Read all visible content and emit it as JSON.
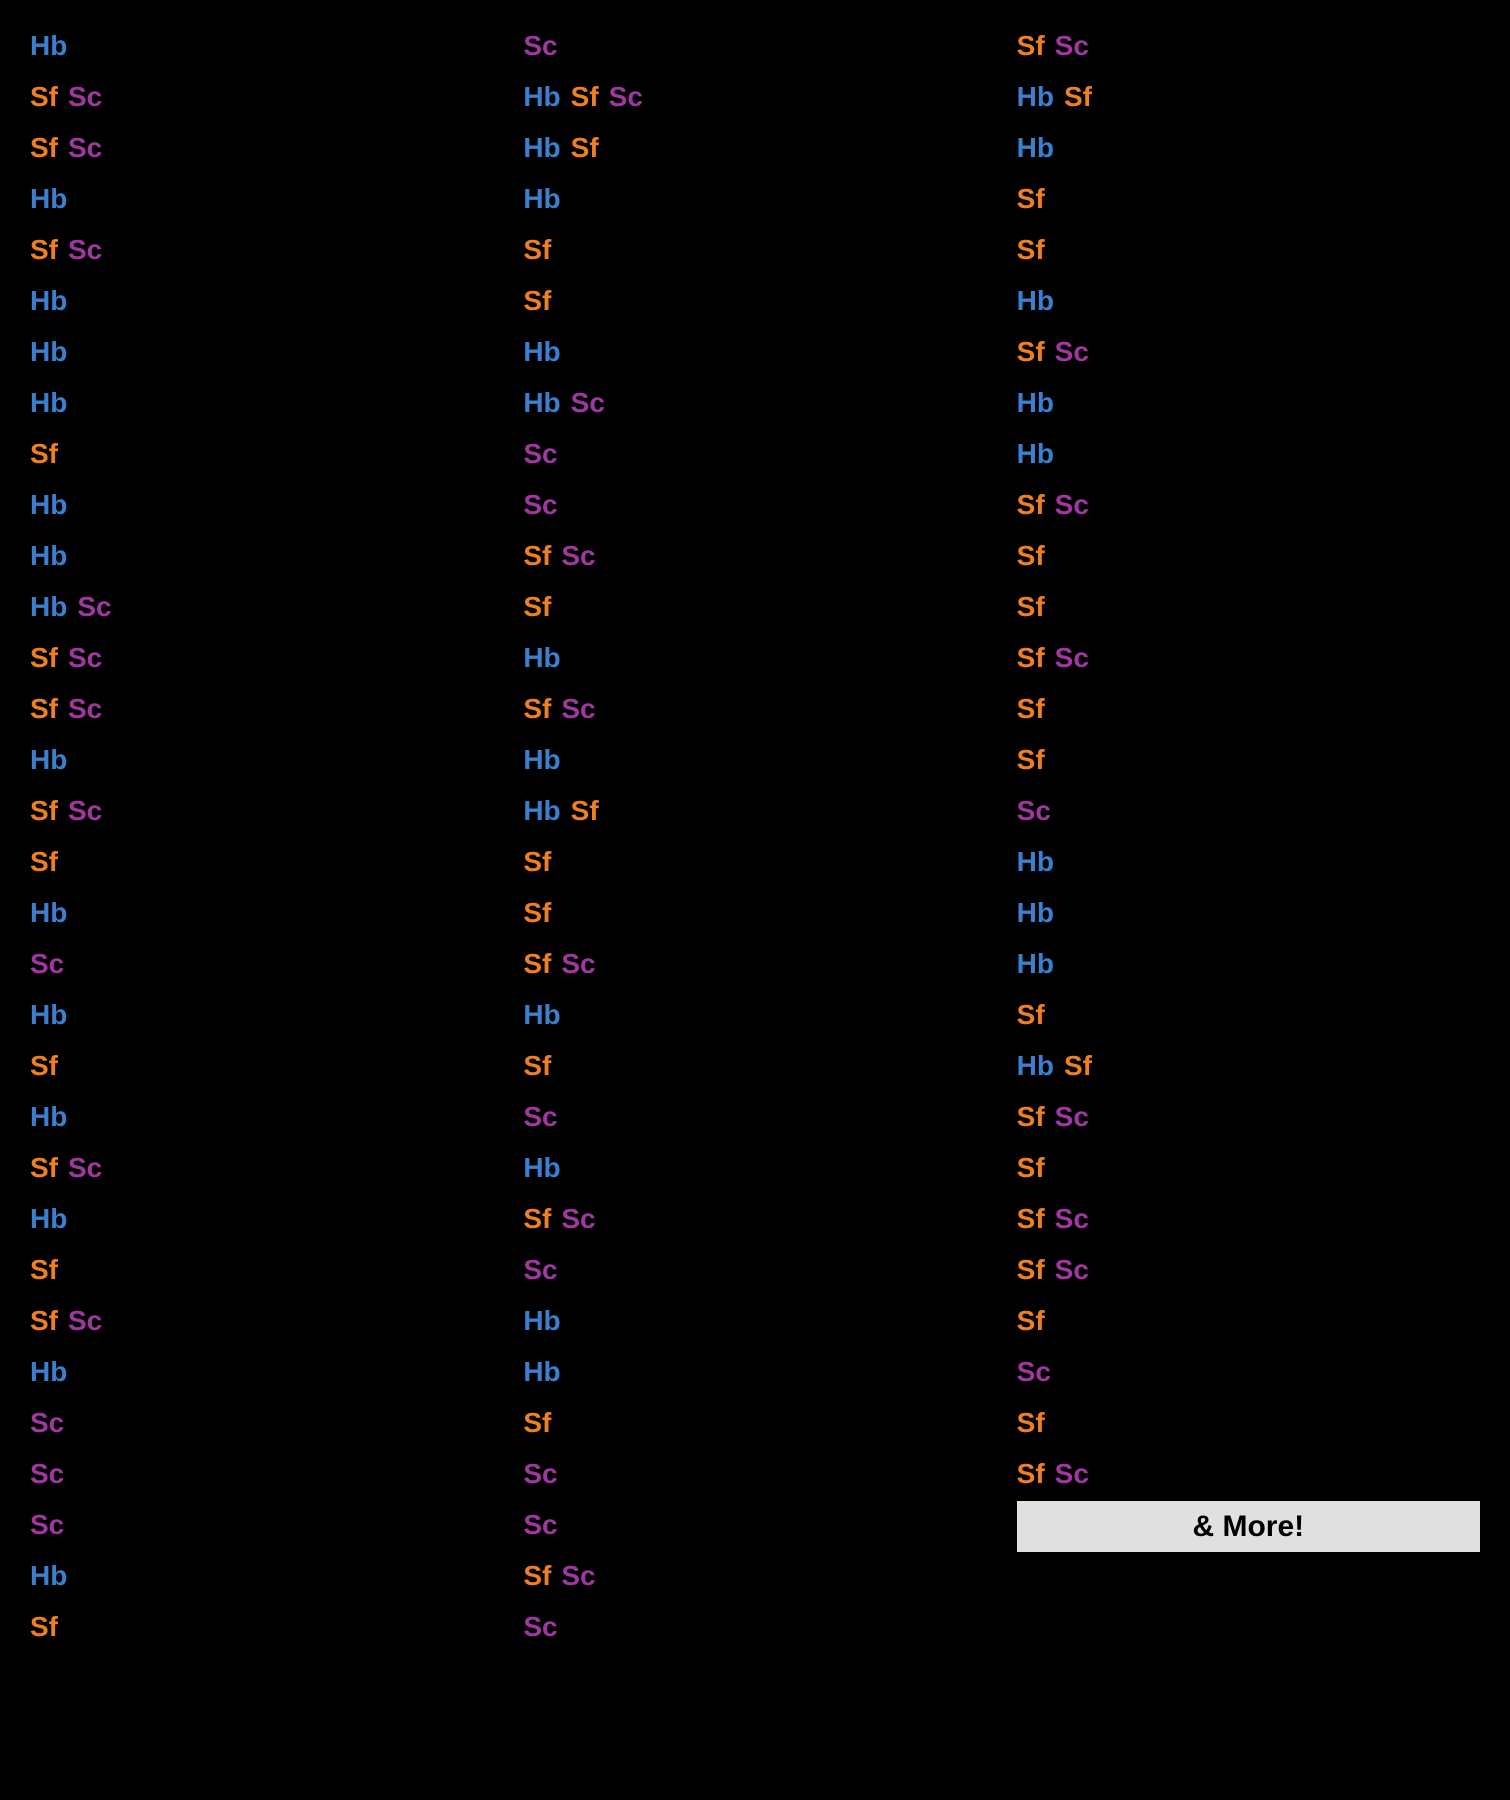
{
  "colors": {
    "Hb": "#3b7fd0",
    "Sf": "#f07f1f",
    "Sc": "#a0369f",
    "more_bg": "#e0e0e0",
    "more_text": "#000000"
  },
  "tag_labels": {
    "Hb": "Hb",
    "Sf": "Sf",
    "Sc": "Sc"
  },
  "more_label": "& More!",
  "columns": [
    [
      [
        "Hb"
      ],
      [
        "Sf",
        "Sc"
      ],
      [
        "Sf",
        "Sc"
      ],
      [
        "Hb"
      ],
      [
        "Sf",
        "Sc"
      ],
      [
        "Hb"
      ],
      [
        "Hb"
      ],
      [
        "Hb"
      ],
      [
        "Sf"
      ],
      [
        "Hb"
      ],
      [
        "Hb"
      ],
      [
        "Hb",
        "Sc"
      ],
      [
        "Sf",
        "Sc"
      ],
      [
        "Sf",
        "Sc"
      ],
      [
        "Hb"
      ],
      [
        "Sf",
        "Sc"
      ],
      [
        "Sf"
      ],
      [
        "Hb"
      ],
      [
        "Sc"
      ],
      [
        "Hb"
      ],
      [
        "Sf"
      ],
      [
        "Hb"
      ],
      [
        "Sf",
        "Sc"
      ],
      [
        "Hb"
      ],
      [
        "Sf"
      ],
      [
        "Sf",
        "Sc"
      ],
      [
        "Hb"
      ],
      [
        "Sc"
      ],
      [
        "Sc"
      ],
      [
        "Sc"
      ],
      [
        "Hb"
      ],
      [
        "Sf"
      ]
    ],
    [
      [
        "Sc"
      ],
      [
        "Hb",
        "Sf",
        "Sc"
      ],
      [
        "Hb",
        "Sf"
      ],
      [
        "Hb"
      ],
      [
        "Sf"
      ],
      [
        "Sf"
      ],
      [
        "Hb"
      ],
      [
        "Hb",
        "Sc"
      ],
      [
        "Sc"
      ],
      [
        "Sc"
      ],
      [
        "Sf",
        "Sc"
      ],
      [
        "Sf"
      ],
      [
        "Hb"
      ],
      [
        "Sf",
        "Sc"
      ],
      [
        "Hb"
      ],
      [
        "Hb",
        "Sf"
      ],
      [
        "Sf"
      ],
      [
        "Sf"
      ],
      [
        "Sf",
        "Sc"
      ],
      [
        "Hb"
      ],
      [
        "Sf"
      ],
      [
        "Sc"
      ],
      [
        "Hb"
      ],
      [
        "Sf",
        "Sc"
      ],
      [
        "Sc"
      ],
      [
        "Hb"
      ],
      [
        "Hb"
      ],
      [
        "Sf"
      ],
      [
        "Sc"
      ],
      [
        "Sc"
      ],
      [
        "Sf",
        "Sc"
      ],
      [
        "Sc"
      ]
    ],
    [
      [
        "Sf",
        "Sc"
      ],
      [
        "Hb",
        "Sf"
      ],
      [
        "Hb"
      ],
      [
        "Sf"
      ],
      [
        "Sf"
      ],
      [
        "Hb"
      ],
      [
        "Sf",
        "Sc"
      ],
      [
        "Hb"
      ],
      [
        "Hb"
      ],
      [
        "Sf",
        "Sc"
      ],
      [
        "Sf"
      ],
      [
        "Sf"
      ],
      [
        "Sf",
        "Sc"
      ],
      [
        "Sf"
      ],
      [
        "Sf"
      ],
      [
        "Sc"
      ],
      [
        "Hb"
      ],
      [
        "Hb"
      ],
      [
        "Hb"
      ],
      [
        "Sf"
      ],
      [
        "Hb",
        "Sf"
      ],
      [
        "Sf",
        "Sc"
      ],
      [
        "Sf"
      ],
      [
        "Sf",
        "Sc"
      ],
      [
        "Sf",
        "Sc"
      ],
      [
        "Sf"
      ],
      [
        "Sc"
      ],
      [
        "Sf"
      ],
      [
        "Sf",
        "Sc"
      ]
    ]
  ]
}
